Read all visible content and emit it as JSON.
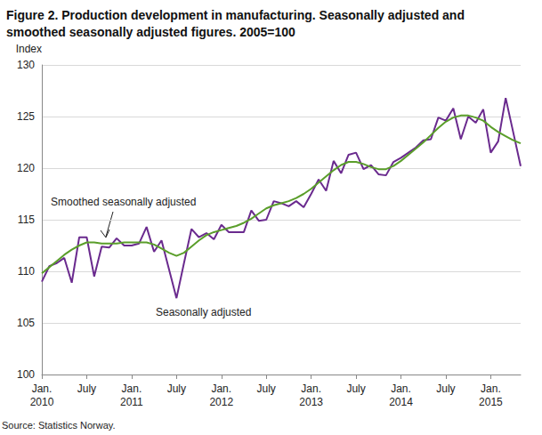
{
  "chart_data": {
    "type": "line",
    "title": "Figure 2. Production development in manufacturing. Seasonally adjusted and\nsmoothed seasonally adjusted figures. 2005=100",
    "y_label": "Index",
    "source": "Source: Statistics Norway.",
    "annotations": [
      "Smoothed seasonally adjusted",
      "Seasonally adjusted"
    ],
    "categories": [
      "Jan.\n2010",
      null,
      null,
      null,
      null,
      null,
      "July",
      null,
      null,
      null,
      null,
      null,
      "Jan.\n2011",
      null,
      null,
      null,
      null,
      null,
      "July",
      null,
      null,
      null,
      null,
      null,
      "Jan.\n2012",
      null,
      null,
      null,
      null,
      null,
      "July",
      null,
      null,
      null,
      null,
      null,
      "Jan.\n2013",
      null,
      null,
      null,
      null,
      null,
      "July",
      null,
      null,
      null,
      null,
      null,
      "Jan.\n2014",
      null,
      null,
      null,
      null,
      null,
      "July",
      null,
      null,
      null,
      null,
      null,
      "Jan.\n2015",
      null,
      null,
      null,
      null
    ],
    "series": [
      {
        "name": "Seasonally adjusted",
        "color": "#6a2a8e",
        "values": [
          109.0,
          110.5,
          110.8,
          111.3,
          108.9,
          113.3,
          113.3,
          109.5,
          112.4,
          112.3,
          113.2,
          112.5,
          112.5,
          112.7,
          114.3,
          111.9,
          113.0,
          110.2,
          107.4,
          110.8,
          114.1,
          113.3,
          113.7,
          113.1,
          114.5,
          113.8,
          113.8,
          113.8,
          115.9,
          114.9,
          115.0,
          116.8,
          116.6,
          116.3,
          116.8,
          116.2,
          117.5,
          118.9,
          117.8,
          120.7,
          119.5,
          121.3,
          121.5,
          119.9,
          120.3,
          119.4,
          119.3,
          120.6,
          121.0,
          121.5,
          122.0,
          122.7,
          122.8,
          124.9,
          124.6,
          125.8,
          122.8,
          125.0,
          124.4,
          125.7,
          121.5,
          122.6,
          126.8,
          123.5,
          120.2
        ]
      },
      {
        "name": "Smoothed seasonally adjusted",
        "color": "#5a9e2a",
        "values": [
          109.8,
          110.4,
          111.0,
          111.6,
          112.1,
          112.5,
          112.8,
          112.8,
          112.7,
          112.7,
          112.7,
          112.8,
          112.8,
          112.8,
          112.8,
          112.6,
          112.2,
          111.8,
          111.5,
          111.8,
          112.4,
          113.0,
          113.5,
          113.8,
          114.0,
          114.2,
          114.4,
          114.7,
          115.1,
          115.6,
          116.1,
          116.4,
          116.6,
          116.8,
          117.1,
          117.5,
          118.0,
          118.6,
          119.2,
          119.8,
          120.3,
          120.6,
          120.6,
          120.4,
          120.1,
          119.9,
          119.9,
          120.2,
          120.7,
          121.3,
          121.9,
          122.5,
          123.2,
          123.9,
          124.5,
          124.9,
          125.1,
          125.1,
          124.9,
          124.6,
          124.0,
          123.5,
          123.1,
          122.7,
          122.4
        ]
      }
    ],
    "ylim": [
      100,
      130
    ],
    "yticks": [
      100,
      105,
      110,
      115,
      120,
      125,
      130
    ],
    "grid": true
  }
}
